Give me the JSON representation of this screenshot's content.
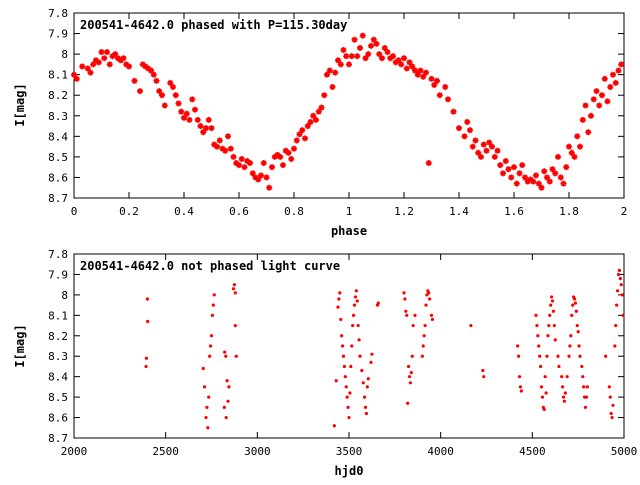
{
  "chart_data": [
    {
      "type": "scatter",
      "title": "200541-4642.0 phased with P=115.30day",
      "xlabel": "phase",
      "ylabel": "I[mag]",
      "xlim": [
        0,
        2
      ],
      "ylim": [
        8.7,
        7.8
      ],
      "y_inverted": true,
      "xticks": [
        "0",
        "0.2",
        "0.4",
        "0.6",
        "0.8",
        "1",
        "1.2",
        "1.4",
        "1.6",
        "1.8",
        "2"
      ],
      "yticks": [
        "7.8",
        "7.9",
        "8",
        "8.1",
        "8.2",
        "8.3",
        "8.4",
        "8.5",
        "8.6",
        "8.7"
      ],
      "marker": "star",
      "color": "#ff0000",
      "points": [
        [
          0.0,
          8.1
        ],
        [
          0.01,
          8.12
        ],
        [
          0.03,
          8.06
        ],
        [
          0.05,
          8.07
        ],
        [
          0.06,
          8.09
        ],
        [
          0.07,
          8.05
        ],
        [
          0.08,
          8.03
        ],
        [
          0.09,
          8.04
        ],
        [
          0.1,
          7.99
        ],
        [
          0.11,
          8.02
        ],
        [
          0.12,
          7.99
        ],
        [
          0.13,
          8.05
        ],
        [
          0.14,
          8.01
        ],
        [
          0.15,
          8.0
        ],
        [
          0.16,
          8.02
        ],
        [
          0.17,
          8.03
        ],
        [
          0.18,
          8.02
        ],
        [
          0.19,
          8.05
        ],
        [
          0.2,
          8.06
        ],
        [
          0.22,
          8.13
        ],
        [
          0.24,
          8.18
        ],
        [
          0.25,
          8.05
        ],
        [
          0.26,
          8.06
        ],
        [
          0.27,
          8.07
        ],
        [
          0.28,
          8.08
        ],
        [
          0.29,
          8.1
        ],
        [
          0.3,
          8.13
        ],
        [
          0.31,
          8.18
        ],
        [
          0.32,
          8.2
        ],
        [
          0.33,
          8.25
        ],
        [
          0.35,
          8.14
        ],
        [
          0.36,
          8.16
        ],
        [
          0.37,
          8.2
        ],
        [
          0.38,
          8.24
        ],
        [
          0.39,
          8.28
        ],
        [
          0.4,
          8.31
        ],
        [
          0.41,
          8.29
        ],
        [
          0.42,
          8.32
        ],
        [
          0.43,
          8.22
        ],
        [
          0.44,
          8.27
        ],
        [
          0.45,
          8.32
        ],
        [
          0.46,
          8.35
        ],
        [
          0.47,
          8.38
        ],
        [
          0.48,
          8.36
        ],
        [
          0.49,
          8.32
        ],
        [
          0.5,
          8.36
        ],
        [
          0.51,
          8.44
        ],
        [
          0.52,
          8.45
        ],
        [
          0.53,
          8.42
        ],
        [
          0.54,
          8.46
        ],
        [
          0.55,
          8.47
        ],
        [
          0.56,
          8.4
        ],
        [
          0.57,
          8.46
        ],
        [
          0.58,
          8.5
        ],
        [
          0.59,
          8.53
        ],
        [
          0.6,
          8.54
        ],
        [
          0.61,
          8.51
        ],
        [
          0.62,
          8.55
        ],
        [
          0.63,
          8.52
        ],
        [
          0.64,
          8.53
        ],
        [
          0.65,
          8.58
        ],
        [
          0.66,
          8.6
        ],
        [
          0.67,
          8.61
        ],
        [
          0.68,
          8.59
        ],
        [
          0.69,
          8.53
        ],
        [
          0.7,
          8.6
        ],
        [
          0.71,
          8.65
        ],
        [
          0.72,
          8.55
        ],
        [
          0.73,
          8.5
        ],
        [
          0.74,
          8.49
        ],
        [
          0.75,
          8.5
        ],
        [
          0.76,
          8.54
        ],
        [
          0.77,
          8.47
        ],
        [
          0.78,
          8.48
        ],
        [
          0.79,
          8.51
        ],
        [
          0.8,
          8.46
        ],
        [
          0.81,
          8.42
        ],
        [
          0.82,
          8.39
        ],
        [
          0.83,
          8.37
        ],
        [
          0.84,
          8.41
        ],
        [
          0.85,
          8.35
        ],
        [
          0.86,
          8.33
        ],
        [
          0.87,
          8.3
        ],
        [
          0.88,
          8.32
        ],
        [
          0.89,
          8.28
        ],
        [
          0.9,
          8.26
        ],
        [
          0.91,
          8.2
        ],
        [
          0.92,
          8.1
        ],
        [
          0.93,
          8.08
        ],
        [
          0.94,
          8.16
        ],
        [
          0.95,
          8.09
        ],
        [
          0.96,
          8.03
        ],
        [
          0.97,
          8.05
        ],
        [
          0.98,
          7.98
        ],
        [
          0.99,
          8.01
        ],
        [
          1.0,
          8.05
        ],
        [
          1.01,
          8.01
        ],
        [
          1.02,
          7.93
        ],
        [
          1.03,
          8.01
        ],
        [
          1.04,
          7.97
        ],
        [
          1.05,
          7.91
        ],
        [
          1.06,
          8.02
        ],
        [
          1.07,
          8.0
        ],
        [
          1.08,
          7.96
        ],
        [
          1.09,
          7.93
        ],
        [
          1.1,
          7.95
        ],
        [
          1.11,
          8.0
        ],
        [
          1.12,
          8.02
        ],
        [
          1.13,
          7.97
        ],
        [
          1.14,
          7.99
        ],
        [
          1.15,
          8.02
        ],
        [
          1.16,
          8.01
        ],
        [
          1.17,
          8.04
        ],
        [
          1.18,
          8.03
        ],
        [
          1.19,
          8.05
        ],
        [
          1.2,
          8.02
        ],
        [
          1.21,
          8.07
        ],
        [
          1.22,
          8.04
        ],
        [
          1.23,
          8.06
        ],
        [
          1.24,
          8.08
        ],
        [
          1.25,
          8.1
        ],
        [
          1.26,
          8.08
        ],
        [
          1.27,
          8.11
        ],
        [
          1.28,
          8.09
        ],
        [
          1.29,
          8.53
        ],
        [
          1.3,
          8.12
        ],
        [
          1.31,
          8.15
        ],
        [
          1.32,
          8.13
        ],
        [
          1.33,
          8.2
        ],
        [
          1.35,
          8.16
        ],
        [
          1.36,
          8.22
        ],
        [
          1.38,
          8.28
        ],
        [
          1.4,
          8.36
        ],
        [
          1.42,
          8.4
        ],
        [
          1.43,
          8.33
        ],
        [
          1.44,
          8.37
        ],
        [
          1.45,
          8.45
        ],
        [
          1.46,
          8.42
        ],
        [
          1.47,
          8.48
        ],
        [
          1.48,
          8.5
        ],
        [
          1.49,
          8.44
        ],
        [
          1.5,
          8.47
        ],
        [
          1.51,
          8.43
        ],
        [
          1.52,
          8.45
        ],
        [
          1.53,
          8.5
        ],
        [
          1.54,
          8.47
        ],
        [
          1.55,
          8.54
        ],
        [
          1.56,
          8.58
        ],
        [
          1.57,
          8.52
        ],
        [
          1.58,
          8.56
        ],
        [
          1.59,
          8.6
        ],
        [
          1.6,
          8.55
        ],
        [
          1.61,
          8.63
        ],
        [
          1.62,
          8.58
        ],
        [
          1.63,
          8.54
        ],
        [
          1.64,
          8.6
        ],
        [
          1.65,
          8.62
        ],
        [
          1.66,
          8.61
        ],
        [
          1.67,
          8.62
        ],
        [
          1.68,
          8.59
        ],
        [
          1.69,
          8.63
        ],
        [
          1.7,
          8.65
        ],
        [
          1.71,
          8.57
        ],
        [
          1.72,
          8.6
        ],
        [
          1.73,
          8.62
        ],
        [
          1.74,
          8.56
        ],
        [
          1.75,
          8.58
        ],
        [
          1.76,
          8.5
        ],
        [
          1.77,
          8.6
        ],
        [
          1.78,
          8.63
        ],
        [
          1.79,
          8.55
        ],
        [
          1.8,
          8.45
        ],
        [
          1.81,
          8.48
        ],
        [
          1.82,
          8.5
        ],
        [
          1.83,
          8.4
        ],
        [
          1.84,
          8.45
        ],
        [
          1.85,
          8.32
        ],
        [
          1.86,
          8.25
        ],
        [
          1.87,
          8.38
        ],
        [
          1.88,
          8.3
        ],
        [
          1.89,
          8.22
        ],
        [
          1.9,
          8.18
        ],
        [
          1.91,
          8.25
        ],
        [
          1.92,
          8.2
        ],
        [
          1.93,
          8.12
        ],
        [
          1.94,
          8.23
        ],
        [
          1.95,
          8.16
        ],
        [
          1.96,
          8.1
        ],
        [
          1.97,
          8.14
        ],
        [
          1.98,
          8.08
        ],
        [
          1.99,
          8.05
        ]
      ]
    },
    {
      "type": "scatter",
      "title": "200541-4642.0 not phased light curve",
      "xlabel": "hjd0",
      "ylabel": "I[mag]",
      "xlim": [
        2000,
        5000
      ],
      "ylim": [
        8.7,
        7.8
      ],
      "y_inverted": true,
      "xticks": [
        "2000",
        "2500",
        "3000",
        "3500",
        "4000",
        "4500",
        "5000"
      ],
      "yticks": [
        "7.8",
        "7.9",
        "8",
        "8.1",
        "8.2",
        "8.3",
        "8.4",
        "8.5",
        "8.6",
        "8.7"
      ],
      "marker": "dot",
      "color": "#ff0000",
      "points": [
        [
          2400,
          8.02
        ],
        [
          2402,
          8.13
        ],
        [
          2395,
          8.31
        ],
        [
          2393,
          8.35
        ],
        [
          2720,
          8.6
        ],
        [
          2725,
          8.55
        ],
        [
          2730,
          8.65
        ],
        [
          2735,
          8.5
        ],
        [
          2740,
          8.3
        ],
        [
          2745,
          8.25
        ],
        [
          2750,
          8.2
        ],
        [
          2755,
          8.1
        ],
        [
          2760,
          8.05
        ],
        [
          2765,
          8.0
        ],
        [
          2705,
          8.36
        ],
        [
          2712,
          8.45
        ],
        [
          2822,
          8.28
        ],
        [
          2828,
          8.3
        ],
        [
          2835,
          8.42
        ],
        [
          2845,
          8.45
        ],
        [
          2820,
          8.55
        ],
        [
          2830,
          8.6
        ],
        [
          2840,
          8.52
        ],
        [
          2870,
          7.97
        ],
        [
          2875,
          7.95
        ],
        [
          2880,
          7.99
        ],
        [
          2880,
          8.15
        ],
        [
          2885,
          8.3
        ],
        [
          3420,
          8.64
        ],
        [
          3440,
          8.06
        ],
        [
          3445,
          8.02
        ],
        [
          3450,
          7.99
        ],
        [
          3455,
          8.12
        ],
        [
          3460,
          8.2
        ],
        [
          3465,
          8.25
        ],
        [
          3470,
          8.3
        ],
        [
          3475,
          8.35
        ],
        [
          3480,
          8.4
        ],
        [
          3485,
          8.45
        ],
        [
          3490,
          8.5
        ],
        [
          3495,
          8.55
        ],
        [
          3430,
          8.42
        ],
        [
          3500,
          8.6
        ],
        [
          3505,
          8.48
        ],
        [
          3510,
          8.35
        ],
        [
          3515,
          8.25
        ],
        [
          3520,
          8.15
        ],
        [
          3525,
          8.1
        ],
        [
          3530,
          8.05
        ],
        [
          3535,
          8.01
        ],
        [
          3540,
          7.98
        ],
        [
          3545,
          8.03
        ],
        [
          3550,
          8.15
        ],
        [
          3555,
          8.22
        ],
        [
          3560,
          8.3
        ],
        [
          3570,
          8.37
        ],
        [
          3578,
          8.43
        ],
        [
          3585,
          8.5
        ],
        [
          3590,
          8.55
        ],
        [
          3595,
          8.58
        ],
        [
          3600,
          8.45
        ],
        [
          3605,
          8.41
        ],
        [
          3620,
          8.33
        ],
        [
          3625,
          8.29
        ],
        [
          3655,
          8.05
        ],
        [
          3660,
          8.04
        ],
        [
          3800,
          7.99
        ],
        [
          3805,
          8.02
        ],
        [
          3810,
          8.08
        ],
        [
          3815,
          8.1
        ],
        [
          3820,
          8.53
        ],
        [
          3825,
          8.35
        ],
        [
          3830,
          8.4
        ],
        [
          3835,
          8.43
        ],
        [
          3840,
          8.38
        ],
        [
          3845,
          8.3
        ],
        [
          3850,
          8.15
        ],
        [
          3860,
          8.1
        ],
        [
          3900,
          8.3
        ],
        [
          3905,
          8.25
        ],
        [
          3910,
          8.2
        ],
        [
          3915,
          8.15
        ],
        [
          3920,
          8.05
        ],
        [
          3925,
          8.0
        ],
        [
          3930,
          7.98
        ],
        [
          3935,
          7.99
        ],
        [
          3940,
          8.02
        ],
        [
          3950,
          8.1
        ],
        [
          3955,
          8.12
        ],
        [
          4165,
          8.15
        ],
        [
          4230,
          8.37
        ],
        [
          4235,
          8.4
        ],
        [
          4420,
          8.25
        ],
        [
          4425,
          8.3
        ],
        [
          4430,
          8.4
        ],
        [
          4435,
          8.45
        ],
        [
          4440,
          8.47
        ],
        [
          4520,
          8.1
        ],
        [
          4525,
          8.15
        ],
        [
          4530,
          8.2
        ],
        [
          4535,
          8.25
        ],
        [
          4540,
          8.3
        ],
        [
          4545,
          8.35
        ],
        [
          4550,
          8.45
        ],
        [
          4555,
          8.5
        ],
        [
          4560,
          8.55
        ],
        [
          4565,
          8.56
        ],
        [
          4570,
          8.4
        ],
        [
          4575,
          8.48
        ],
        [
          4580,
          8.3
        ],
        [
          4585,
          8.2
        ],
        [
          4590,
          8.15
        ],
        [
          4595,
          8.1
        ],
        [
          4600,
          8.05
        ],
        [
          4605,
          8.01
        ],
        [
          4610,
          8.03
        ],
        [
          4615,
          8.08
        ],
        [
          4620,
          8.15
        ],
        [
          4625,
          8.22
        ],
        [
          4640,
          8.3
        ],
        [
          4645,
          8.35
        ],
        [
          4660,
          8.4
        ],
        [
          4665,
          8.45
        ],
        [
          4670,
          8.5
        ],
        [
          4675,
          8.52
        ],
        [
          4680,
          8.48
        ],
        [
          4690,
          8.4
        ],
        [
          4700,
          8.3
        ],
        [
          4705,
          8.25
        ],
        [
          4710,
          8.2
        ],
        [
          4715,
          8.1
        ],
        [
          4720,
          8.05
        ],
        [
          4725,
          8.01
        ],
        [
          4730,
          8.02
        ],
        [
          4735,
          8.04
        ],
        [
          4740,
          8.08
        ],
        [
          4745,
          8.15
        ],
        [
          4750,
          8.18
        ],
        [
          4755,
          8.25
        ],
        [
          4760,
          8.3
        ],
        [
          4770,
          8.35
        ],
        [
          4775,
          8.4
        ],
        [
          4780,
          8.45
        ],
        [
          4785,
          8.5
        ],
        [
          4790,
          8.55
        ],
        [
          4795,
          8.5
        ],
        [
          4800,
          8.45
        ],
        [
          4900,
          8.3
        ],
        [
          4920,
          8.45
        ],
        [
          4925,
          8.5
        ],
        [
          4930,
          8.58
        ],
        [
          4935,
          8.6
        ],
        [
          4940,
          8.54
        ],
        [
          4950,
          8.25
        ],
        [
          4955,
          8.15
        ],
        [
          4960,
          8.05
        ],
        [
          4965,
          7.98
        ],
        [
          4970,
          7.9
        ],
        [
          4975,
          7.88
        ],
        [
          4980,
          7.92
        ],
        [
          4985,
          7.95
        ],
        [
          4990,
          8.0
        ],
        [
          4995,
          8.1
        ]
      ]
    }
  ]
}
